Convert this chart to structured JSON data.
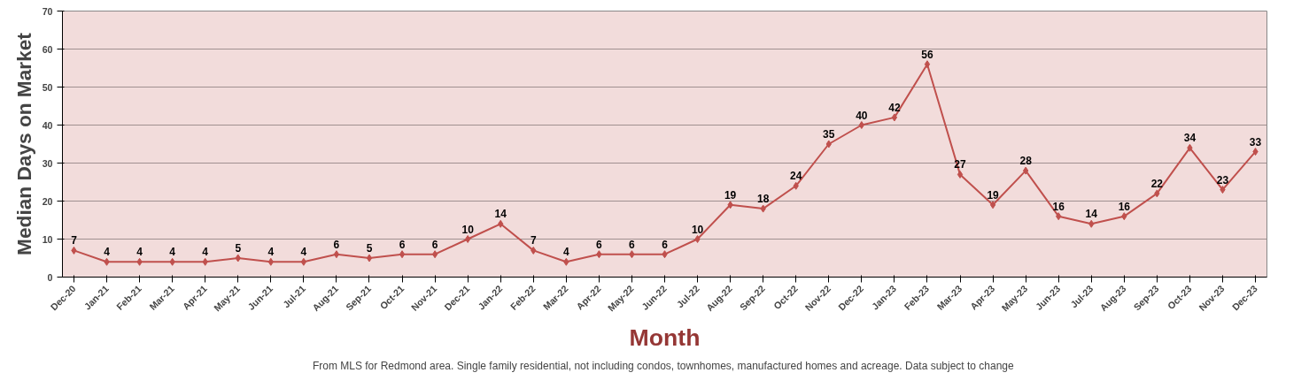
{
  "chart_data": {
    "type": "line",
    "xlabel": "Month",
    "ylabel": "Median Days on Market",
    "categories": [
      "Dec-20",
      "Jan-21",
      "Feb-21",
      "Mar-21",
      "Apr-21",
      "May-21",
      "Jun-21",
      "Jul-21",
      "Aug-21",
      "Sep-21",
      "Oct-21",
      "Nov-21",
      "Dec-21",
      "Jan-22",
      "Feb-22",
      "Mar-22",
      "Apr-22",
      "May-22",
      "Jun-22",
      "Jul-22",
      "Aug-22",
      "Sep-22",
      "Oct-22",
      "Nov-22",
      "Dec-22",
      "Jan-23",
      "Feb-23",
      "Mar-23",
      "Apr-23",
      "May-23",
      "Jun-23",
      "Jul-23",
      "Aug-23",
      "Sep-23",
      "Oct-23",
      "Nov-23",
      "Dec-23"
    ],
    "series": [
      {
        "color": "#c0504d",
        "values": [
          7,
          4,
          4,
          4,
          4,
          5,
          4,
          4,
          6,
          5,
          6,
          6,
          10,
          14,
          7,
          4,
          6,
          6,
          6,
          10,
          19,
          18,
          24,
          35,
          40,
          42,
          56,
          27,
          19,
          28,
          16,
          14,
          16,
          22,
          34,
          23,
          33
        ]
      }
    ],
    "ylim": [
      0,
      70
    ],
    "yticks": [
      0,
      10,
      20,
      30,
      40,
      50,
      60,
      70
    ],
    "grid": "y",
    "marker": "diamond",
    "line_style": "solid",
    "data_labels": true,
    "annotations": [
      "From MLS for Redmond area. Single family residential, not including condos, townhomes, manufactured homes and acreage.  Data subject to change"
    ]
  }
}
